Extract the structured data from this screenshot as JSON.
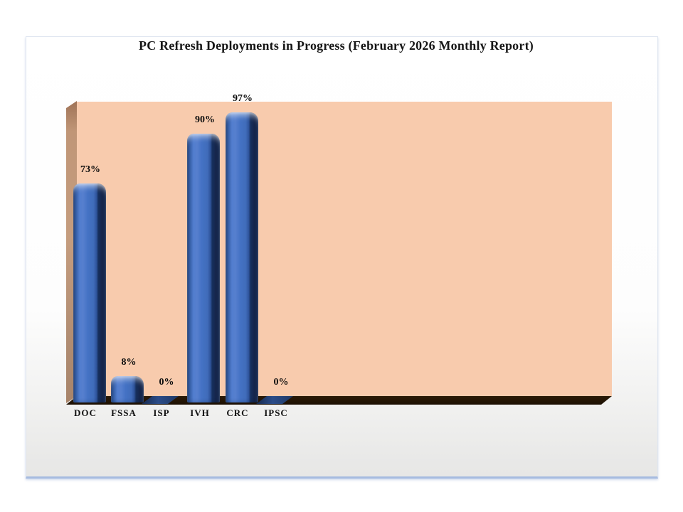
{
  "chart_data": {
    "type": "bar",
    "style": "3d-beveled-bars",
    "title": "PC Refresh Deployments in Progress (February 2026 Monthly Report)",
    "categories": [
      "DOC",
      "FSSA",
      "ISP",
      "IVH",
      "CRC",
      "IPSC"
    ],
    "values": [
      73,
      8,
      0,
      90,
      97,
      0
    ],
    "labels": [
      "73%",
      "8%",
      "0%",
      "90%",
      "97%",
      "0%"
    ],
    "unit": "%",
    "ylim": [
      0,
      100
    ],
    "grid": false,
    "legend": false,
    "colors": {
      "bar_face": "#4472C4",
      "bar_highlight": "#5A86D5",
      "bar_dark_side": "#17305E",
      "wall_back": "#F8CBAD",
      "wall_side": "#BD947A",
      "floor": "#241504",
      "zero_bar": "#1F3864",
      "label_text": "#0D0D0D",
      "slide_bottom_border": "#A6BBE0"
    }
  }
}
